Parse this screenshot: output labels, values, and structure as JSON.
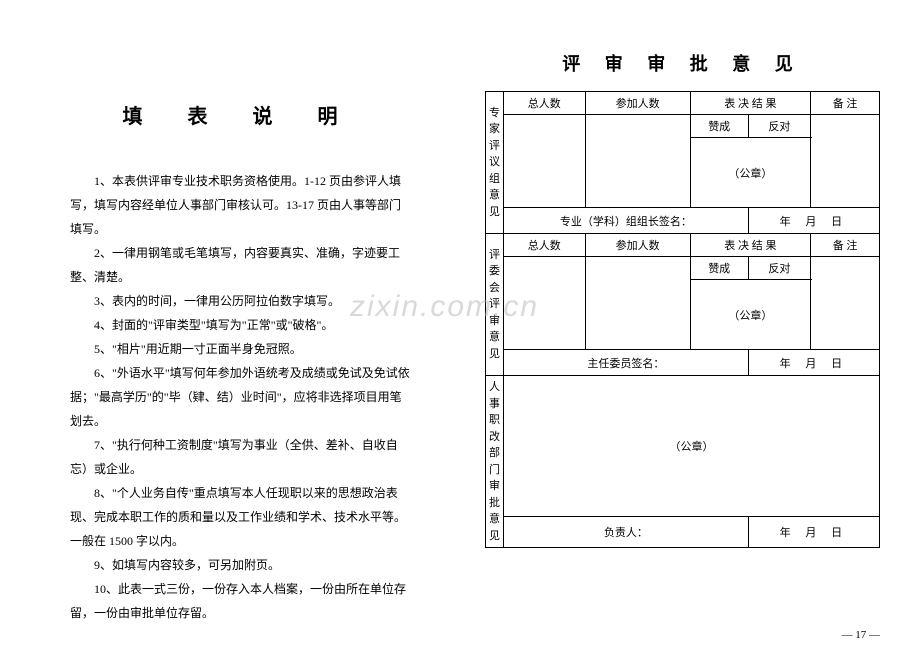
{
  "watermark": "zixin.com.cn",
  "left": {
    "title": "填 表 说 明",
    "items": [
      "1、本表供评审专业技术职务资格使用。1-12 页由参评人填写，填写内容经单位人事部门审核认可。13-17 页由人事等部门填写。",
      "2、一律用钢笔或毛笔填写，内容要真实、准确，字迹要工整、清楚。",
      "3、表内的时间，一律用公历阿拉伯数字填写。",
      "4、封面的\"评审类型\"填写为\"正常\"或\"破格\"。",
      "5、\"相片\"用近期一寸正面半身免冠照。",
      "6、\"外语水平\"填写何年参加外语统考及成绩或免试及免试依据；\"最高学历\"的\"毕（肄、结）业时间\"，应将非选择项目用笔划去。",
      "7、\"执行何种工资制度\"填写为事业（全供、差补、自收自忘）或企业。",
      "8、\"个人业务自传\"重点填写本人任现职以来的思想政治表现、完成本职工作的质和量以及工作业绩和学术、技术水平等。一般在 1500 字以内。",
      "9、如填写内容较多，可另加附页。",
      "10、此表一式三份，一份存入本人档案，一份由所在单位存留，一份由审批单位存留。"
    ]
  },
  "right": {
    "title": "评 审 审 批 意 见",
    "headers": {
      "total": "总人数",
      "attend": "参加人数",
      "result": "表 决 结 果",
      "remark": "备 注",
      "agree": "赞成",
      "against": "反对"
    },
    "sections": [
      {
        "label": "专家评议组意见",
        "sig": "专业（学科）组组长签名："
      },
      {
        "label": "评委会评审意见",
        "sig": "主任委员签名："
      },
      {
        "label": "人事职改部门审批意见",
        "sig": "负责人："
      }
    ],
    "seal": "（公章）",
    "date": "年 月 日",
    "pagenum": "— 17 —"
  }
}
